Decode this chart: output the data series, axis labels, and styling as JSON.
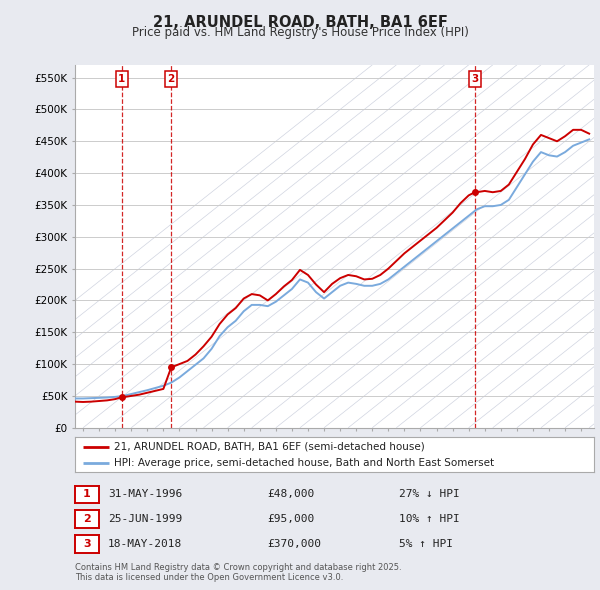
{
  "title": "21, ARUNDEL ROAD, BATH, BA1 6EF",
  "subtitle": "Price paid vs. HM Land Registry's House Price Index (HPI)",
  "legend_line1": "21, ARUNDEL ROAD, BATH, BA1 6EF (semi-detached house)",
  "legend_line2": "HPI: Average price, semi-detached house, Bath and North East Somerset",
  "transactions": [
    {
      "num": 1,
      "date": "31-MAY-1996",
      "year": 1996.42,
      "price": 48000,
      "hpi_rel": "27% ↓ HPI"
    },
    {
      "num": 2,
      "date": "25-JUN-1999",
      "year": 1999.49,
      "price": 95000,
      "hpi_rel": "10% ↑ HPI"
    },
    {
      "num": 3,
      "date": "18-MAY-2018",
      "year": 2018.38,
      "price": 370000,
      "hpi_rel": "5% ↑ HPI"
    }
  ],
  "footer": "Contains HM Land Registry data © Crown copyright and database right 2025.\nThis data is licensed under the Open Government Licence v3.0.",
  "ylim": [
    0,
    570000
  ],
  "yticks": [
    0,
    50000,
    100000,
    150000,
    200000,
    250000,
    300000,
    350000,
    400000,
    450000,
    500000,
    550000
  ],
  "ytick_labels": [
    "£0",
    "£50K",
    "£100K",
    "£150K",
    "£200K",
    "£250K",
    "£300K",
    "£350K",
    "£400K",
    "£450K",
    "£500K",
    "£550K"
  ],
  "xlim_start": 1993.5,
  "xlim_end": 2025.8,
  "hpi_color": "#7aaadd",
  "price_color": "#cc0000",
  "vline_color": "#cc0000",
  "grid_color": "#cccccc",
  "bg_color": "#e8eaf0",
  "plot_bg": "#ffffff",
  "hatch_color": "#d0d4e0",
  "hpi_data": [
    [
      1993.5,
      46000
    ],
    [
      1994.0,
      46000
    ],
    [
      1994.5,
      46500
    ],
    [
      1995.0,
      47000
    ],
    [
      1995.5,
      47500
    ],
    [
      1996.0,
      48500
    ],
    [
      1996.5,
      50000
    ],
    [
      1997.0,
      53000
    ],
    [
      1997.5,
      56000
    ],
    [
      1998.0,
      59000
    ],
    [
      1998.5,
      62500
    ],
    [
      1999.0,
      66000
    ],
    [
      1999.5,
      71000
    ],
    [
      2000.0,
      79000
    ],
    [
      2000.5,
      89000
    ],
    [
      2001.0,
      99000
    ],
    [
      2001.5,
      109000
    ],
    [
      2002.0,
      124000
    ],
    [
      2002.5,
      144000
    ],
    [
      2003.0,
      158000
    ],
    [
      2003.5,
      168000
    ],
    [
      2004.0,
      183000
    ],
    [
      2004.5,
      193000
    ],
    [
      2005.0,
      193000
    ],
    [
      2005.5,
      191000
    ],
    [
      2006.0,
      198000
    ],
    [
      2006.5,
      208000
    ],
    [
      2007.0,
      218000
    ],
    [
      2007.5,
      233000
    ],
    [
      2008.0,
      228000
    ],
    [
      2008.5,
      213000
    ],
    [
      2009.0,
      203000
    ],
    [
      2009.5,
      213000
    ],
    [
      2010.0,
      223000
    ],
    [
      2010.5,
      228000
    ],
    [
      2011.0,
      226000
    ],
    [
      2011.5,
      223000
    ],
    [
      2012.0,
      223000
    ],
    [
      2012.5,
      226000
    ],
    [
      2013.0,
      233000
    ],
    [
      2013.5,
      243000
    ],
    [
      2014.0,
      253000
    ],
    [
      2014.5,
      263000
    ],
    [
      2015.0,
      273000
    ],
    [
      2015.5,
      283000
    ],
    [
      2016.0,
      293000
    ],
    [
      2016.5,
      303000
    ],
    [
      2017.0,
      313000
    ],
    [
      2017.5,
      323000
    ],
    [
      2018.0,
      333000
    ],
    [
      2018.5,
      343000
    ],
    [
      2019.0,
      348000
    ],
    [
      2019.5,
      348000
    ],
    [
      2020.0,
      350000
    ],
    [
      2020.5,
      358000
    ],
    [
      2021.0,
      378000
    ],
    [
      2021.5,
      398000
    ],
    [
      2022.0,
      418000
    ],
    [
      2022.5,
      433000
    ],
    [
      2023.0,
      428000
    ],
    [
      2023.5,
      426000
    ],
    [
      2024.0,
      433000
    ],
    [
      2024.5,
      443000
    ],
    [
      2025.0,
      448000
    ],
    [
      2025.5,
      453000
    ]
  ],
  "price_data": [
    [
      1993.5,
      41000
    ],
    [
      1994.0,
      40500
    ],
    [
      1994.5,
      41000
    ],
    [
      1995.0,
      42000
    ],
    [
      1995.5,
      43000
    ],
    [
      1996.0,
      45000
    ],
    [
      1996.42,
      48000
    ],
    [
      1996.5,
      48000
    ],
    [
      1997.0,
      50000
    ],
    [
      1997.5,
      52000
    ],
    [
      1998.0,
      55000
    ],
    [
      1998.5,
      58000
    ],
    [
      1999.0,
      61000
    ],
    [
      1999.49,
      95000
    ],
    [
      1999.5,
      95000
    ],
    [
      2000.0,
      100000
    ],
    [
      2000.5,
      105000
    ],
    [
      2001.0,
      115000
    ],
    [
      2001.5,
      128000
    ],
    [
      2002.0,
      143000
    ],
    [
      2002.5,
      163000
    ],
    [
      2003.0,
      178000
    ],
    [
      2003.5,
      188000
    ],
    [
      2004.0,
      203000
    ],
    [
      2004.5,
      210000
    ],
    [
      2005.0,
      208000
    ],
    [
      2005.5,
      200000
    ],
    [
      2006.0,
      210000
    ],
    [
      2006.5,
      222000
    ],
    [
      2007.0,
      232000
    ],
    [
      2007.5,
      248000
    ],
    [
      2008.0,
      240000
    ],
    [
      2008.5,
      225000
    ],
    [
      2009.0,
      213000
    ],
    [
      2009.5,
      226000
    ],
    [
      2010.0,
      235000
    ],
    [
      2010.5,
      240000
    ],
    [
      2011.0,
      238000
    ],
    [
      2011.5,
      233000
    ],
    [
      2012.0,
      234000
    ],
    [
      2012.5,
      240000
    ],
    [
      2013.0,
      250000
    ],
    [
      2013.5,
      262000
    ],
    [
      2014.0,
      274000
    ],
    [
      2014.5,
      284000
    ],
    [
      2015.0,
      294000
    ],
    [
      2015.5,
      304000
    ],
    [
      2016.0,
      314000
    ],
    [
      2016.5,
      326000
    ],
    [
      2017.0,
      338000
    ],
    [
      2017.5,
      353000
    ],
    [
      2018.0,
      365000
    ],
    [
      2018.38,
      370000
    ],
    [
      2018.5,
      370000
    ],
    [
      2019.0,
      372000
    ],
    [
      2019.5,
      370000
    ],
    [
      2020.0,
      372000
    ],
    [
      2020.5,
      382000
    ],
    [
      2021.0,
      402000
    ],
    [
      2021.5,
      422000
    ],
    [
      2022.0,
      445000
    ],
    [
      2022.5,
      460000
    ],
    [
      2023.0,
      455000
    ],
    [
      2023.5,
      450000
    ],
    [
      2024.0,
      458000
    ],
    [
      2024.5,
      468000
    ],
    [
      2025.0,
      468000
    ],
    [
      2025.5,
      462000
    ]
  ]
}
